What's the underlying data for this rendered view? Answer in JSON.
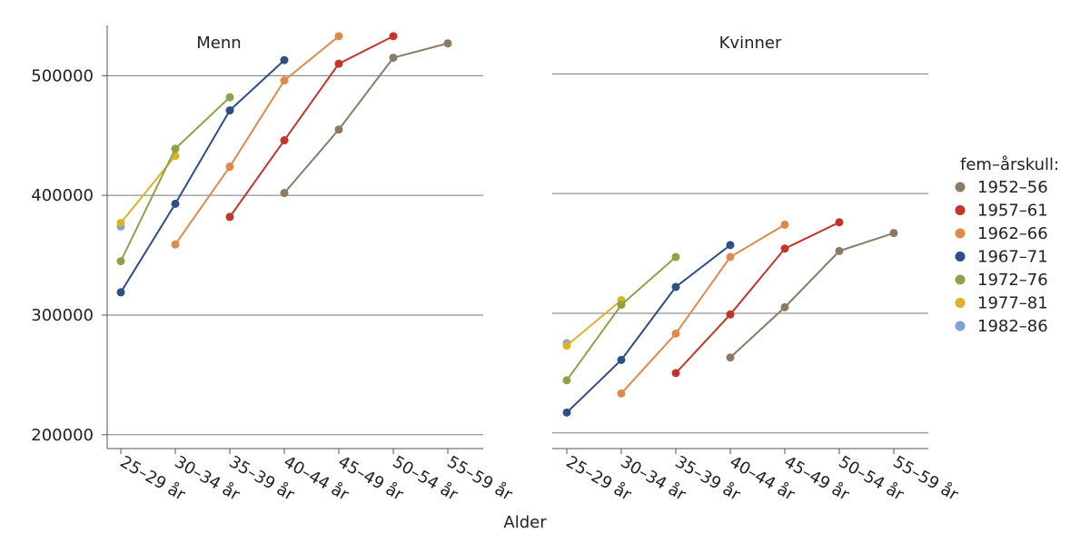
{
  "chart_data": {
    "type": "line",
    "xlabel": "Alder",
    "ylabel": "",
    "ylim": [
      193000,
      542000
    ],
    "yticks": [
      200000,
      300000,
      400000,
      500000
    ],
    "ytick_labels": [
      "200000",
      "300000",
      "400000",
      "500000"
    ],
    "categories": [
      "25–29 år",
      "30–34 år",
      "35–39 år",
      "40–44 år",
      "45–49 år",
      "50–54 år",
      "55–59 år"
    ],
    "legend_title": "fem–årskull:",
    "legend_position": "right",
    "series": [
      {
        "name": "1952–56",
        "color": "#8b7b66"
      },
      {
        "name": "1957–61",
        "color": "#c2352b"
      },
      {
        "name": "1962–66",
        "color": "#df8a4a"
      },
      {
        "name": "1967–71",
        "color": "#2e4e86"
      },
      {
        "name": "1972–76",
        "color": "#8da347"
      },
      {
        "name": "1977–81",
        "color": "#dcb226"
      },
      {
        "name": "1982–86",
        "color": "#7fa3d8"
      }
    ],
    "panels": [
      {
        "title": "Menn",
        "values": {
          "1952–56": [
            null,
            null,
            null,
            402000,
            455000,
            515000,
            527000
          ],
          "1957–61": [
            null,
            null,
            382000,
            446000,
            510000,
            533000,
            null
          ],
          "1962–66": [
            null,
            359000,
            424000,
            496000,
            533000,
            null,
            null
          ],
          "1967–71": [
            319000,
            393000,
            471000,
            513000,
            null,
            null,
            null
          ],
          "1972–76": [
            345000,
            439000,
            482000,
            null,
            null,
            null,
            null
          ],
          "1977–81": [
            377000,
            433000,
            null,
            null,
            null,
            null,
            null
          ],
          "1982–86": [
            374000,
            null,
            null,
            null,
            null,
            null,
            null
          ]
        }
      },
      {
        "title": "Kvinner",
        "values": {
          "1952–56": [
            null,
            null,
            null,
            263000,
            305000,
            352000,
            367000
          ],
          "1957–61": [
            null,
            null,
            250000,
            299000,
            354000,
            376000,
            null
          ],
          "1962–66": [
            null,
            233000,
            283000,
            347000,
            374000,
            null,
            null
          ],
          "1967–71": [
            217000,
            261000,
            322000,
            357000,
            null,
            null,
            null
          ],
          "1972–76": [
            244000,
            307000,
            347000,
            null,
            null,
            null,
            null
          ],
          "1977–81": [
            273000,
            311000,
            null,
            null,
            null,
            null,
            null
          ],
          "1982–86": [
            275000,
            null,
            null,
            null,
            null,
            null,
            null
          ]
        }
      }
    ]
  }
}
